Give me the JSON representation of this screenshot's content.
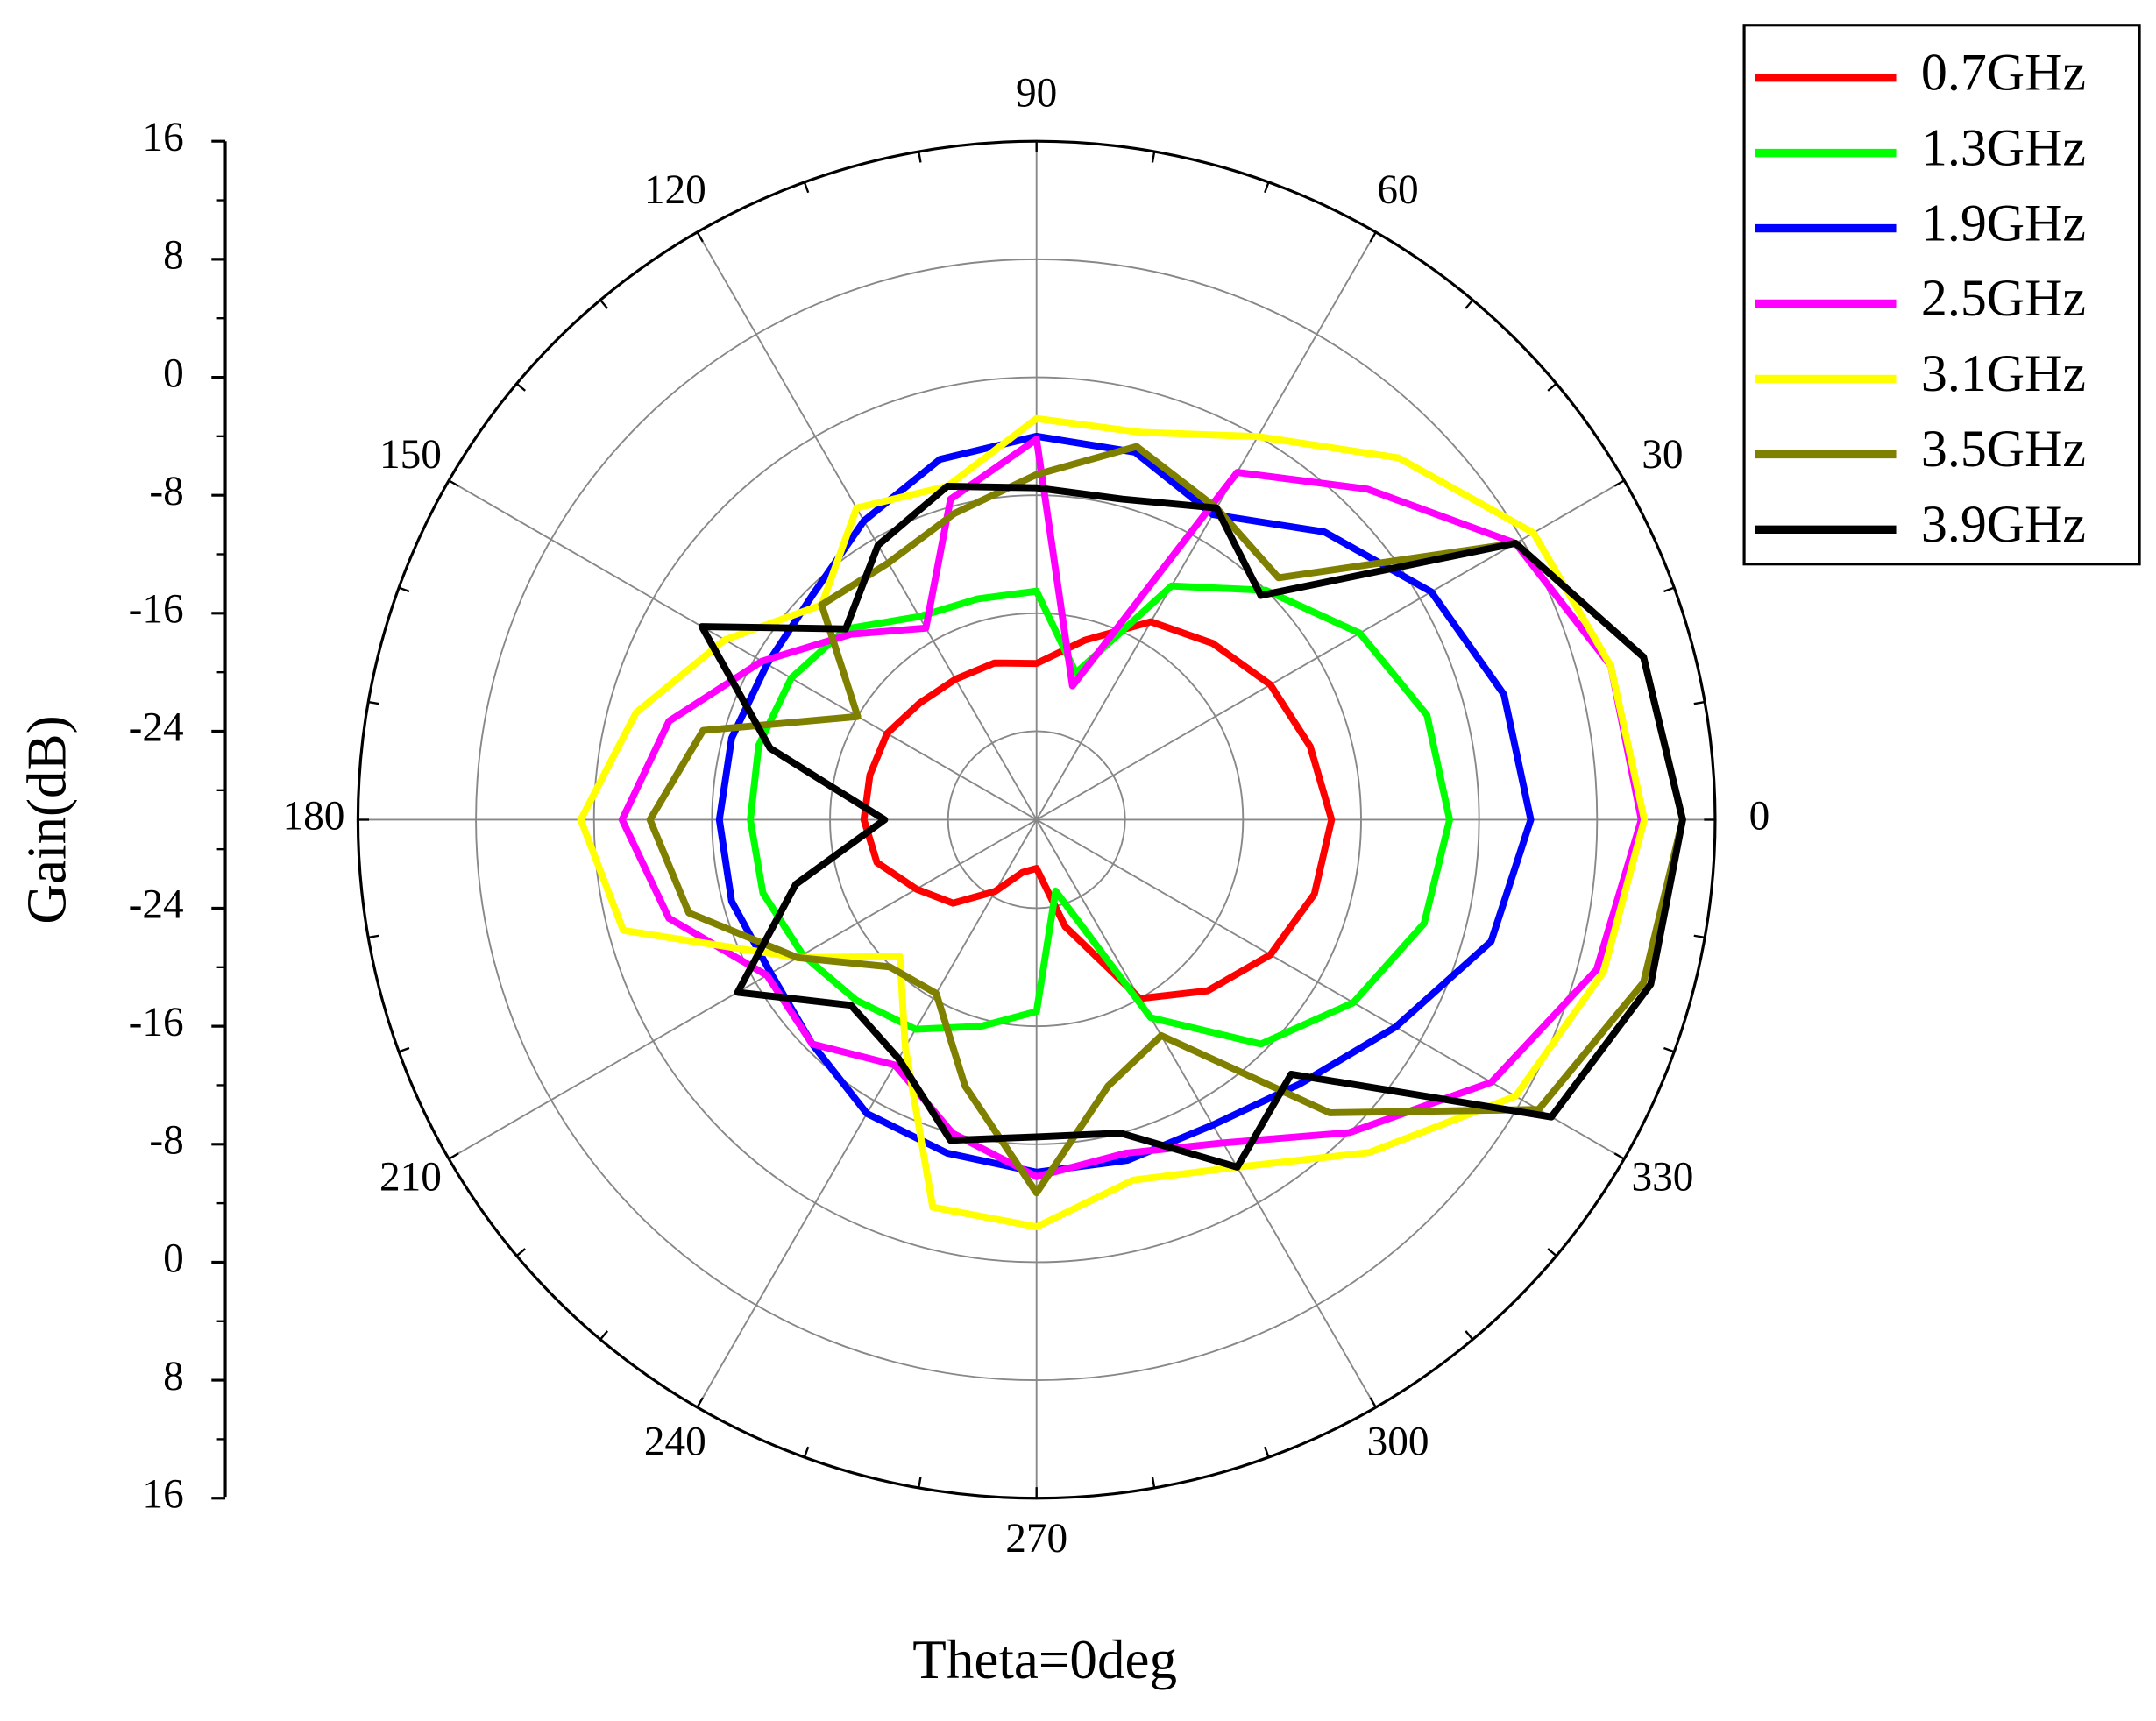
{
  "chart_data": {
    "type": "polar",
    "xlabel": "Theta=0deg",
    "ylabel": "Gain(dB)",
    "theta": [
      0,
      15,
      30,
      45,
      60,
      75,
      90,
      105,
      120,
      135,
      150,
      165,
      180,
      195,
      210,
      225,
      240,
      255,
      270,
      285,
      300,
      315,
      330,
      345
    ],
    "rlim": [
      -30,
      16
    ],
    "rticks": [
      -24,
      -16,
      -8,
      0,
      8,
      16
    ],
    "thetaticks": [
      0,
      30,
      60,
      90,
      120,
      150,
      180,
      210,
      240,
      270,
      300,
      330
    ],
    "grid": true,
    "legend": "top-right",
    "series": [
      {
        "name": "0.7GHz",
        "color": "#ff0000",
        "values": [
          -10,
          -10.8,
          -11.7,
          -13.1,
          -14.5,
          -17.4,
          -19.4,
          -19,
          -19,
          -18.8,
          -18.3,
          -18.3,
          -18.3,
          -18.8,
          -20.6,
          -22,
          -24.4,
          -26.3,
          -26.7,
          -22.5,
          -16,
          -13.6,
          -11.7,
          -10.5
        ]
      },
      {
        "name": "1.3GHz",
        "color": "#00ff00",
        "values": [
          -2,
          -2.6,
          -4.7,
          -8,
          -11.7,
          -19.7,
          -14.5,
          -14.5,
          -14.1,
          -11.7,
          -10.8,
          -10.5,
          -10.6,
          -10.8,
          -11.7,
          -12.7,
          -13.6,
          -15.5,
          -17,
          -25,
          -14.5,
          -8.5,
          -5.2,
          -2.8
        ]
      },
      {
        "name": "1.9GHz",
        "color": "#0000ff",
        "values": [
          3.5,
          2.8,
          0.9,
          -2.4,
          -6.1,
          -4.2,
          -4,
          -4.7,
          -6.6,
          -8.5,
          -8.9,
          -8.6,
          -8.5,
          -8.6,
          -9.2,
          -8.5,
          -7,
          -6.6,
          -6.1,
          -6.1,
          -6.1,
          -4.7,
          -1.9,
          1.9
        ]
      },
      {
        "name": "2.5GHz",
        "color": "#ff00ff",
        "values": [
          11,
          10.3,
          7.5,
          1.7,
          -2.8,
          -20.6,
          -4.2,
          -7.5,
          -15,
          -12.2,
          -8.5,
          -4.2,
          -1.9,
          -4.2,
          -8.9,
          -8.5,
          -10.8,
          -8,
          -5.8,
          -6.6,
          -4.7,
          0,
          5.6,
          9.3
        ]
      },
      {
        "name": "3.1GHz",
        "color": "#ffff00",
        "values": [
          11.2,
          10.3,
          8.9,
          4.7,
          0,
          -2.8,
          -2.8,
          -6.6,
          -5.6,
          -9.4,
          -5.6,
          -1.9,
          0.9,
          -1,
          -11.3,
          -16.9,
          -12.2,
          -2.8,
          -2.4,
          -4.7,
          -2.8,
          1.9,
          7.5,
          9.8
        ]
      },
      {
        "name": "3.5GHz",
        "color": "#808000",
        "values": [
          13.8,
          12.6,
          7.5,
          -6.8,
          -5.6,
          -3.8,
          -6.6,
          -8.5,
          -9.9,
          -9.4,
          -16,
          -6.6,
          -3.8,
          -5.6,
          -11.3,
          -15.9,
          -16.4,
          -11.3,
          -4.7,
          -11.3,
          -13.1,
          -1.9,
          9.3,
          12.6
        ]
      },
      {
        "name": "3.9GHz",
        "color": "#000000",
        "values": [
          13.8,
          12.6,
          7.5,
          -8.5,
          -5.6,
          -7.5,
          -7.5,
          -6.6,
          -8.5,
          -11.7,
          -3.8,
          -11.3,
          -19.7,
          -13.1,
          -6.6,
          -12.2,
          -11.3,
          -7.5,
          -8.5,
          -8,
          -2.8,
          -5.6,
          10.3,
          13.1
        ]
      }
    ]
  }
}
